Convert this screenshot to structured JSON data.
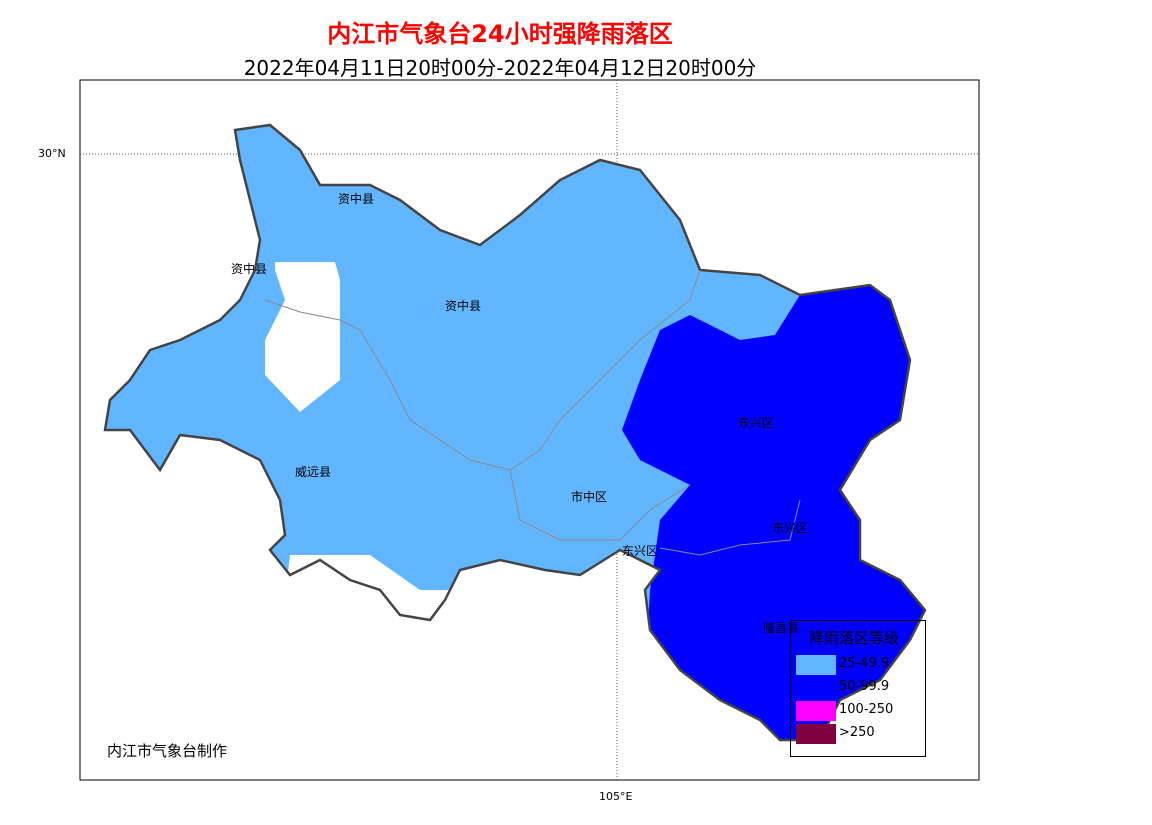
{
  "title": "内江市气象台24小时强降雨落区",
  "subtitle": "2022年04月11日20时00分-2022年04月12日20时00分",
  "axes": {
    "lat_label": "30°N",
    "lon_label": "105°E"
  },
  "places": {
    "zizhong1": "资中县",
    "zizhong2": "资中县",
    "zizhong3": "资中县",
    "weiyuan": "威远县",
    "shizhong": "市中区",
    "dongxing1": "东兴区",
    "dongxing2": "东兴区",
    "dongxing3": "东兴区",
    "longchang": "隆昌县"
  },
  "legend": {
    "title": "降雨落区等级",
    "items": [
      {
        "label": "25-49.9",
        "color": "#62b6ff"
      },
      {
        "label": "50-99.9",
        "color": "#0000ff"
      },
      {
        "label": "100-250",
        "color": "#ff00ff"
      },
      {
        "label": ">250",
        "color": "#800040"
      }
    ]
  },
  "footer": "内江市气象台制作"
}
